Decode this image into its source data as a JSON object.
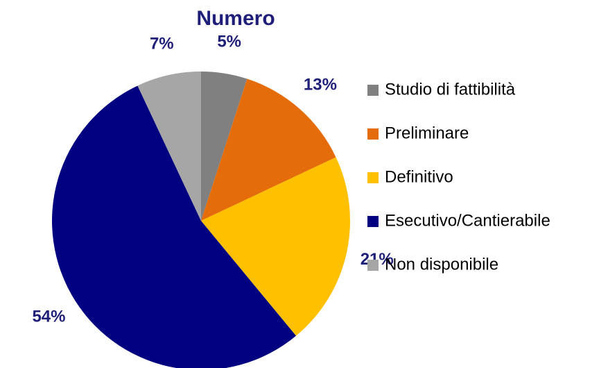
{
  "chart_data": {
    "type": "pie",
    "title": "Numero",
    "categories": [
      "Studio di fattibilità",
      "Preliminare",
      "Definitivo",
      "Esecutivo/Cantierabile",
      "Non disponibile"
    ],
    "values": [
      5,
      13,
      21,
      54,
      7
    ],
    "value_labels": [
      "5%",
      "13%",
      "21%",
      "54%",
      "7%"
    ],
    "colors": [
      "#808080",
      "#e46c0a",
      "#ffc000",
      "#000080",
      "#a6a6a6"
    ],
    "legend": "right"
  }
}
